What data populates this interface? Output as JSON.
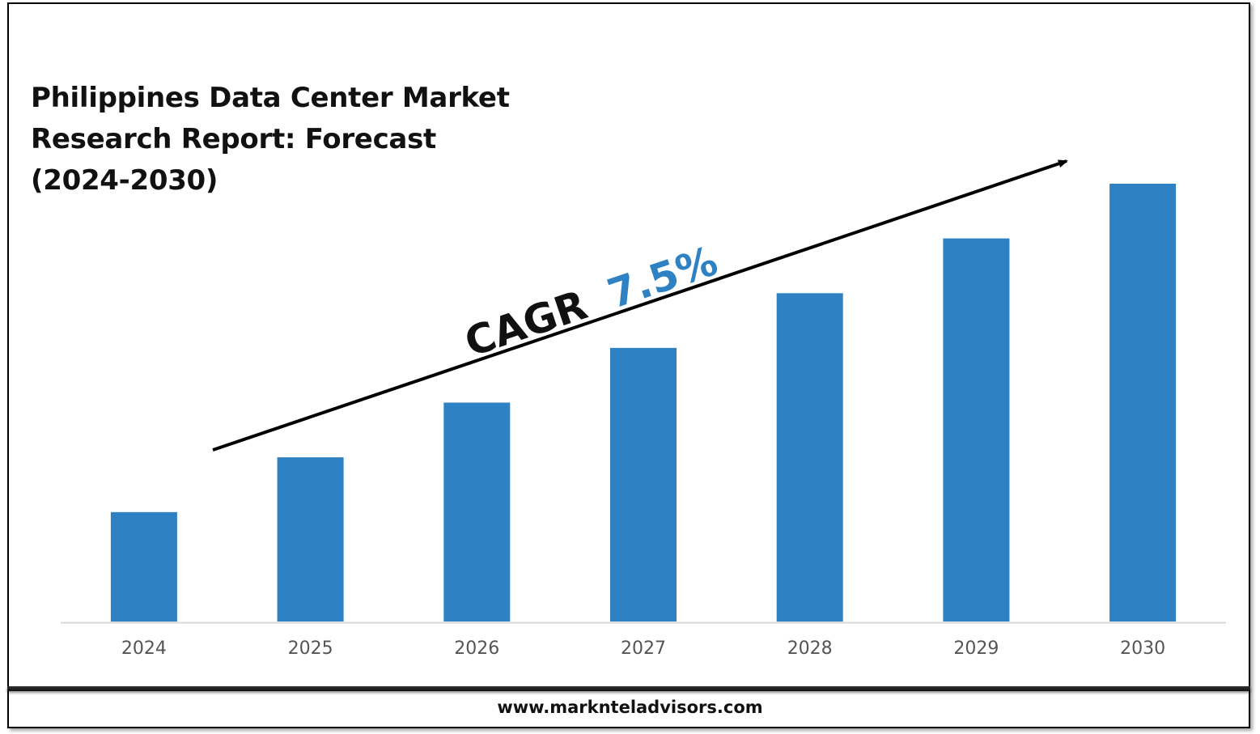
{
  "title_lines": [
    "Philippines Data Center Market",
    "Research Report: Forecast",
    "(2024-2030)"
  ],
  "annotation": {
    "label": "CAGR",
    "value": "7.5%",
    "label_color": "#111111",
    "value_color": "#2e82c3"
  },
  "footer": {
    "url": "www.marknteladvisors.com"
  },
  "colors": {
    "bar": "#2e82c3",
    "axis": "#d9d9d9",
    "arrow": "#000000"
  },
  "chart_data": {
    "type": "bar",
    "title": "Philippines Data Center Market Research Report: Forecast (2024-2030)",
    "categories": [
      "2024",
      "2025",
      "2026",
      "2027",
      "2028",
      "2029",
      "2030"
    ],
    "values": [
      1.0,
      1.5,
      2.0,
      2.5,
      3.0,
      3.5,
      4.0
    ],
    "ylim": [
      0,
      4.0
    ],
    "xlabel": "",
    "ylabel": "",
    "grid": false,
    "legend": "none",
    "annotation": "CAGR 7.5%"
  }
}
